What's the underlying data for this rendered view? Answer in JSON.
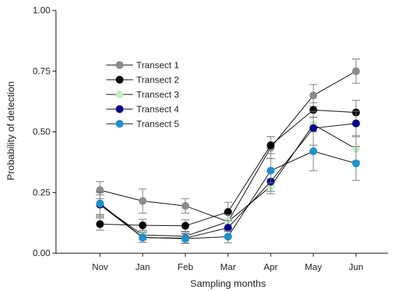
{
  "chart_data": {
    "type": "line",
    "title": "",
    "xlabel": "Sampling months",
    "ylabel": "Probability of detection",
    "ylim": [
      0,
      1
    ],
    "yticks": [
      "0.00",
      "0.25",
      "0.50",
      "0.75",
      "1.00"
    ],
    "categories": [
      "Nov",
      "Jan",
      "Feb",
      "Mar",
      "Apr",
      "May",
      "Jun"
    ],
    "legend_position": "upper-left",
    "grid": false,
    "series": [
      {
        "name": "Transect 1",
        "color": "#8c8c8c",
        "values": [
          0.26,
          0.215,
          0.195,
          0.13,
          0.435,
          0.65,
          0.75
        ],
        "errors": [
          0.035,
          0.05,
          0.03,
          0.04,
          0.045,
          0.045,
          0.05
        ]
      },
      {
        "name": "Transect 2",
        "color": "#000000",
        "values": [
          0.12,
          0.115,
          0.113,
          0.17,
          0.445,
          0.59,
          0.58
        ],
        "errors": [
          0.025,
          0.025,
          0.025,
          0.04,
          0.035,
          0.03,
          0.05
        ]
      },
      {
        "name": "Transect 3",
        "color": "#c6ecc6",
        "values": [
          0.2,
          0.075,
          0.07,
          0.13,
          0.275,
          0.53,
          0.43
        ],
        "errors": [
          0.04,
          0.02,
          0.02,
          0.03,
          0.03,
          0.03,
          0.05
        ]
      },
      {
        "name": "Transect 4",
        "color": "#00008b",
        "values": [
          0.2,
          0.065,
          0.062,
          0.105,
          0.295,
          0.515,
          0.535
        ],
        "errors": [
          0.05,
          0.02,
          0.02,
          0.03,
          0.04,
          0.07,
          0.05
        ]
      },
      {
        "name": "Transect 5",
        "color": "#1e90cc",
        "values": [
          0.205,
          0.065,
          0.06,
          0.068,
          0.34,
          0.42,
          0.37
        ],
        "errors": [
          0.05,
          0.02,
          0.02,
          0.025,
          0.05,
          0.08,
          0.07
        ]
      }
    ]
  }
}
